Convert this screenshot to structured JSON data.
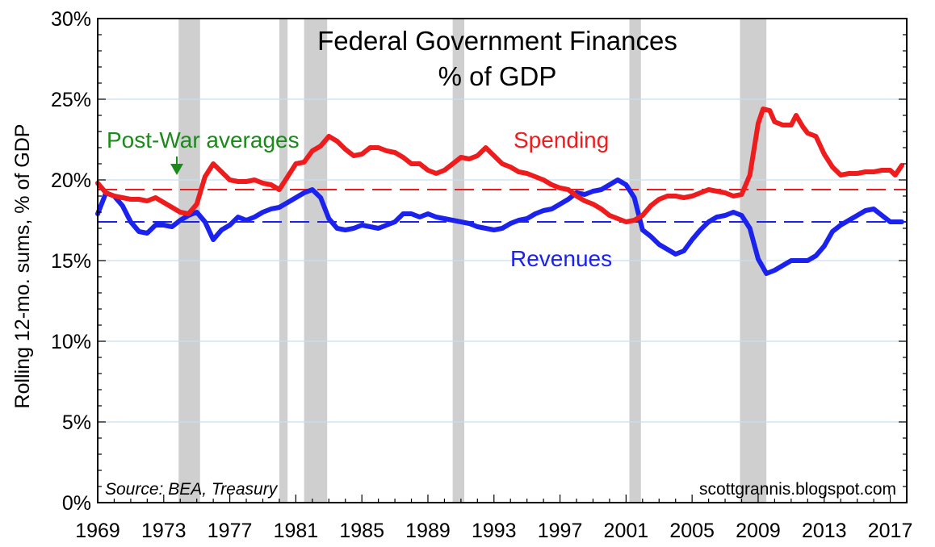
{
  "chart_data": {
    "type": "line",
    "title": "Federal Government Finances",
    "subtitle": "% of GDP",
    "ylabel": "Rolling 12-mo. sums, % of GDP",
    "xlabel": "",
    "xlim": [
      1969,
      2018
    ],
    "ylim": [
      0,
      30
    ],
    "grid": true,
    "x_ticks": [
      1969,
      1973,
      1977,
      1981,
      1985,
      1989,
      1993,
      1997,
      2001,
      2005,
      2009,
      2013,
      2017
    ],
    "x_tick_labels": [
      "1969",
      "1973",
      "1977",
      "1981",
      "1985",
      "1989",
      "1993",
      "1997",
      "2001",
      "2005",
      "2009",
      "2013",
      "2017"
    ],
    "y_ticks": [
      0,
      5,
      10,
      15,
      20,
      25,
      30
    ],
    "y_tick_labels": [
      "0%",
      "5%",
      "10%",
      "15%",
      "20%",
      "25%",
      "30%"
    ],
    "recessions": [
      [
        1973.9,
        1975.2
      ],
      [
        1980.0,
        1980.5
      ],
      [
        1981.5,
        1982.9
      ],
      [
        1990.5,
        1991.2
      ],
      [
        2001.2,
        2001.9
      ],
      [
        2007.9,
        2009.5
      ]
    ],
    "series": [
      {
        "name": "Spending",
        "color": "#ee1c1c",
        "average": 19.4,
        "points": [
          [
            1969.0,
            19.8
          ],
          [
            1969.5,
            19.2
          ],
          [
            1970.0,
            19.0
          ],
          [
            1970.5,
            18.9
          ],
          [
            1971.0,
            18.8
          ],
          [
            1971.5,
            18.8
          ],
          [
            1972.0,
            18.7
          ],
          [
            1972.5,
            18.9
          ],
          [
            1973.0,
            18.6
          ],
          [
            1973.5,
            18.3
          ],
          [
            1974.0,
            18.0
          ],
          [
            1974.5,
            17.9
          ],
          [
            1975.0,
            18.5
          ],
          [
            1975.5,
            20.2
          ],
          [
            1976.0,
            21.0
          ],
          [
            1976.5,
            20.5
          ],
          [
            1977.0,
            20.0
          ],
          [
            1977.5,
            19.9
          ],
          [
            1978.0,
            19.9
          ],
          [
            1978.5,
            20.0
          ],
          [
            1979.0,
            19.8
          ],
          [
            1979.5,
            19.7
          ],
          [
            1980.0,
            19.4
          ],
          [
            1980.5,
            20.2
          ],
          [
            1981.0,
            21.0
          ],
          [
            1981.5,
            21.1
          ],
          [
            1982.0,
            21.8
          ],
          [
            1982.5,
            22.1
          ],
          [
            1983.0,
            22.7
          ],
          [
            1983.5,
            22.4
          ],
          [
            1984.0,
            21.9
          ],
          [
            1984.5,
            21.5
          ],
          [
            1985.0,
            21.6
          ],
          [
            1985.5,
            22.0
          ],
          [
            1986.0,
            22.0
          ],
          [
            1986.5,
            21.8
          ],
          [
            1987.0,
            21.7
          ],
          [
            1987.5,
            21.4
          ],
          [
            1988.0,
            21.0
          ],
          [
            1988.5,
            21.0
          ],
          [
            1989.0,
            20.6
          ],
          [
            1989.5,
            20.4
          ],
          [
            1990.0,
            20.6
          ],
          [
            1990.5,
            21.0
          ],
          [
            1991.0,
            21.4
          ],
          [
            1991.5,
            21.3
          ],
          [
            1992.0,
            21.5
          ],
          [
            1992.5,
            22.0
          ],
          [
            1993.0,
            21.5
          ],
          [
            1993.5,
            21.0
          ],
          [
            1994.0,
            20.8
          ],
          [
            1994.5,
            20.5
          ],
          [
            1995.0,
            20.4
          ],
          [
            1995.5,
            20.2
          ],
          [
            1996.0,
            20.0
          ],
          [
            1996.5,
            19.7
          ],
          [
            1997.0,
            19.5
          ],
          [
            1997.5,
            19.4
          ],
          [
            1998.0,
            19.0
          ],
          [
            1998.5,
            18.7
          ],
          [
            1999.0,
            18.5
          ],
          [
            1999.5,
            18.2
          ],
          [
            2000.0,
            17.8
          ],
          [
            2000.5,
            17.6
          ],
          [
            2001.0,
            17.4
          ],
          [
            2001.5,
            17.5
          ],
          [
            2002.0,
            17.8
          ],
          [
            2002.5,
            18.4
          ],
          [
            2003.0,
            18.8
          ],
          [
            2003.5,
            19.0
          ],
          [
            2004.0,
            19.0
          ],
          [
            2004.5,
            18.9
          ],
          [
            2005.0,
            19.0
          ],
          [
            2005.5,
            19.2
          ],
          [
            2006.0,
            19.4
          ],
          [
            2006.5,
            19.3
          ],
          [
            2007.0,
            19.2
          ],
          [
            2007.5,
            19.0
          ],
          [
            2008.0,
            19.1
          ],
          [
            2008.5,
            20.3
          ],
          [
            2009.0,
            23.5
          ],
          [
            2009.3,
            24.4
          ],
          [
            2009.7,
            24.3
          ],
          [
            2010.0,
            23.6
          ],
          [
            2010.5,
            23.4
          ],
          [
            2011.0,
            23.4
          ],
          [
            2011.3,
            24.0
          ],
          [
            2011.7,
            23.3
          ],
          [
            2012.0,
            22.9
          ],
          [
            2012.5,
            22.7
          ],
          [
            2013.0,
            21.6
          ],
          [
            2013.5,
            20.8
          ],
          [
            2014.0,
            20.3
          ],
          [
            2014.5,
            20.4
          ],
          [
            2015.0,
            20.4
          ],
          [
            2015.5,
            20.5
          ],
          [
            2016.0,
            20.5
          ],
          [
            2016.5,
            20.6
          ],
          [
            2017.0,
            20.6
          ],
          [
            2017.3,
            20.3
          ],
          [
            2017.7,
            20.9
          ]
        ]
      },
      {
        "name": "Revenues",
        "color": "#1c22ee",
        "average": 17.4,
        "points": [
          [
            1969.0,
            17.9
          ],
          [
            1969.5,
            19.2
          ],
          [
            1970.0,
            19.0
          ],
          [
            1970.5,
            18.4
          ],
          [
            1971.0,
            17.4
          ],
          [
            1971.5,
            16.8
          ],
          [
            1972.0,
            16.7
          ],
          [
            1972.5,
            17.2
          ],
          [
            1973.0,
            17.2
          ],
          [
            1973.5,
            17.1
          ],
          [
            1974.0,
            17.5
          ],
          [
            1974.5,
            17.8
          ],
          [
            1975.0,
            18.0
          ],
          [
            1975.5,
            17.4
          ],
          [
            1976.0,
            16.3
          ],
          [
            1976.5,
            16.9
          ],
          [
            1977.0,
            17.2
          ],
          [
            1977.5,
            17.7
          ],
          [
            1978.0,
            17.5
          ],
          [
            1978.5,
            17.7
          ],
          [
            1979.0,
            18.0
          ],
          [
            1979.5,
            18.2
          ],
          [
            1980.0,
            18.3
          ],
          [
            1980.5,
            18.6
          ],
          [
            1981.0,
            18.9
          ],
          [
            1981.5,
            19.2
          ],
          [
            1982.0,
            19.4
          ],
          [
            1982.5,
            18.9
          ],
          [
            1983.0,
            17.6
          ],
          [
            1983.5,
            17.0
          ],
          [
            1984.0,
            16.9
          ],
          [
            1984.5,
            17.0
          ],
          [
            1985.0,
            17.2
          ],
          [
            1985.5,
            17.1
          ],
          [
            1986.0,
            17.0
          ],
          [
            1986.5,
            17.2
          ],
          [
            1987.0,
            17.4
          ],
          [
            1987.5,
            17.9
          ],
          [
            1988.0,
            17.9
          ],
          [
            1988.5,
            17.7
          ],
          [
            1989.0,
            17.9
          ],
          [
            1989.5,
            17.7
          ],
          [
            1990.0,
            17.6
          ],
          [
            1990.5,
            17.5
          ],
          [
            1991.0,
            17.4
          ],
          [
            1991.5,
            17.3
          ],
          [
            1992.0,
            17.1
          ],
          [
            1992.5,
            17.0
          ],
          [
            1993.0,
            16.9
          ],
          [
            1993.5,
            17.0
          ],
          [
            1994.0,
            17.3
          ],
          [
            1994.5,
            17.5
          ],
          [
            1995.0,
            17.6
          ],
          [
            1995.5,
            17.9
          ],
          [
            1996.0,
            18.1
          ],
          [
            1996.5,
            18.2
          ],
          [
            1997.0,
            18.5
          ],
          [
            1997.5,
            18.8
          ],
          [
            1998.0,
            19.2
          ],
          [
            1998.5,
            19.1
          ],
          [
            1999.0,
            19.3
          ],
          [
            1999.5,
            19.4
          ],
          [
            2000.0,
            19.7
          ],
          [
            2000.5,
            20.0
          ],
          [
            2001.0,
            19.7
          ],
          [
            2001.5,
            18.9
          ],
          [
            2002.0,
            16.9
          ],
          [
            2002.5,
            16.5
          ],
          [
            2003.0,
            16.0
          ],
          [
            2003.5,
            15.7
          ],
          [
            2004.0,
            15.4
          ],
          [
            2004.5,
            15.6
          ],
          [
            2005.0,
            16.3
          ],
          [
            2005.5,
            16.9
          ],
          [
            2006.0,
            17.4
          ],
          [
            2006.5,
            17.7
          ],
          [
            2007.0,
            17.8
          ],
          [
            2007.5,
            18.0
          ],
          [
            2008.0,
            17.8
          ],
          [
            2008.5,
            17.0
          ],
          [
            2009.0,
            15.1
          ],
          [
            2009.5,
            14.2
          ],
          [
            2010.0,
            14.4
          ],
          [
            2010.5,
            14.7
          ],
          [
            2011.0,
            15.0
          ],
          [
            2011.5,
            15.0
          ],
          [
            2012.0,
            15.0
          ],
          [
            2012.5,
            15.3
          ],
          [
            2013.0,
            15.9
          ],
          [
            2013.5,
            16.8
          ],
          [
            2014.0,
            17.2
          ],
          [
            2014.5,
            17.5
          ],
          [
            2015.0,
            17.8
          ],
          [
            2015.5,
            18.1
          ],
          [
            2016.0,
            18.2
          ],
          [
            2016.5,
            17.8
          ],
          [
            2017.0,
            17.4
          ],
          [
            2017.7,
            17.4
          ]
        ]
      }
    ],
    "annotations": {
      "spending_label": "Spending",
      "revenues_label": "Revenues",
      "averages_label": "Post-War averages",
      "source": "Source:  BEA, Treasury",
      "watermark": "scottgrannis.blogspot.com"
    }
  },
  "colors": {
    "averages_label": "#1a8a1a",
    "recession": "#cfcfcf",
    "grid": "#c6dff0"
  }
}
